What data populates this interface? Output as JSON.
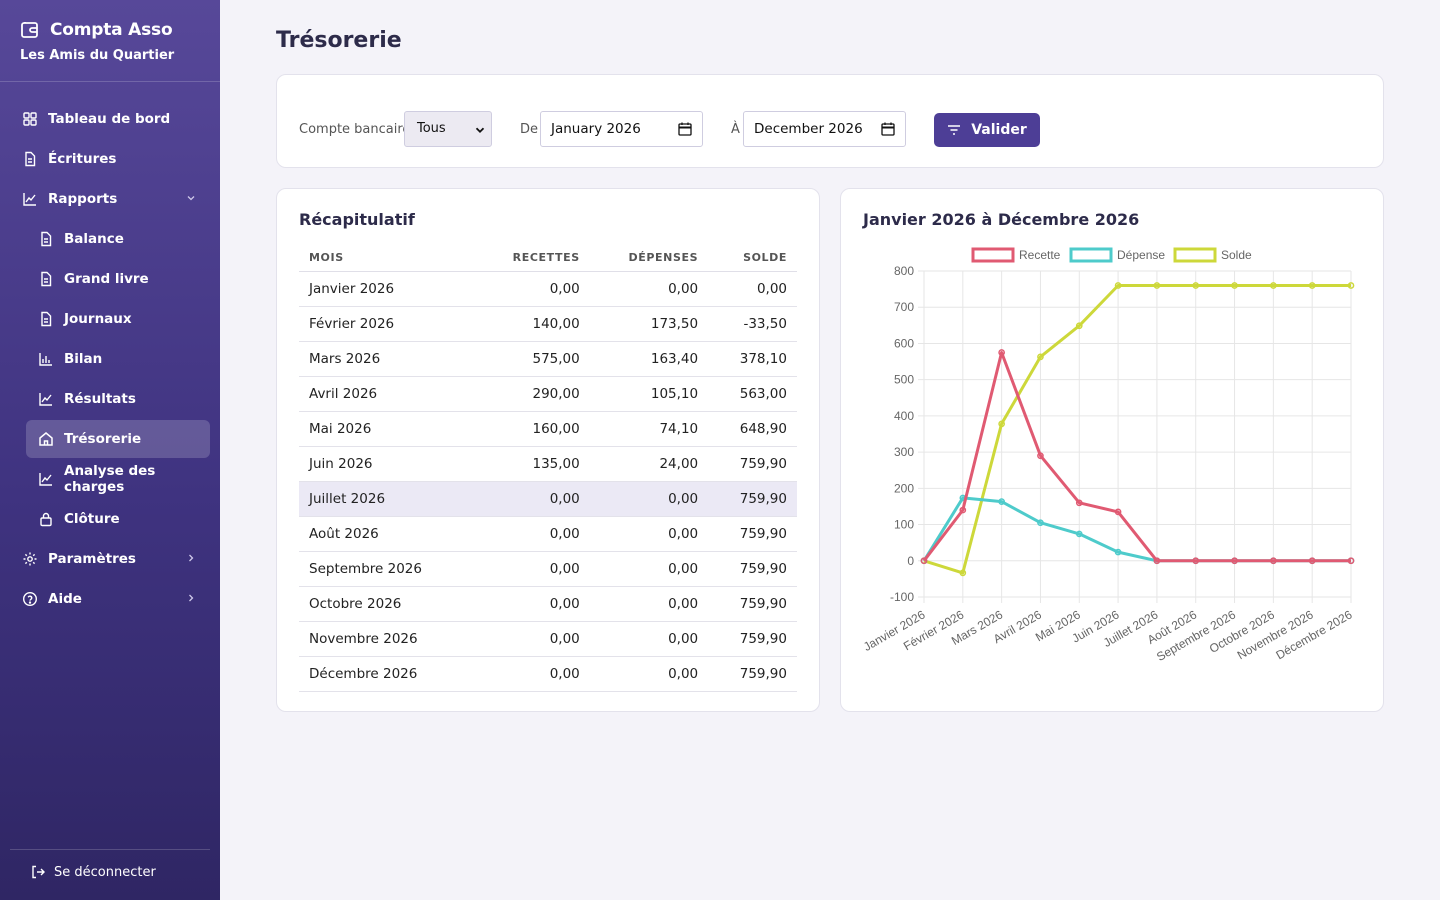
{
  "app": {
    "name": "Compta Asso",
    "organization": "Les Amis du Quartier"
  },
  "sidebar": {
    "items": [
      {
        "label": "Tableau de bord",
        "icon": "dashboard-icon"
      },
      {
        "label": "Écritures",
        "icon": "document-icon"
      },
      {
        "label": "Rapports",
        "icon": "chart-line-icon",
        "expanded": true
      },
      {
        "label": "Balance",
        "icon": "document-icon"
      },
      {
        "label": "Grand livre",
        "icon": "document-icon"
      },
      {
        "label": "Journaux",
        "icon": "document-icon"
      },
      {
        "label": "Bilan",
        "icon": "bar-chart-icon"
      },
      {
        "label": "Résultats",
        "icon": "chart-line-icon"
      },
      {
        "label": "Trésorerie",
        "icon": "home-icon",
        "active": true
      },
      {
        "label": "Analyse des charges",
        "icon": "chart-line-icon"
      },
      {
        "label": "Clôture",
        "icon": "lock-icon"
      },
      {
        "label": "Paramètres",
        "icon": "gear-icon"
      },
      {
        "label": "Aide",
        "icon": "help-icon"
      }
    ],
    "logout_label": "Se déconnecter"
  },
  "page": {
    "title": "Trésorerie"
  },
  "filters": {
    "account_label": "Compte bancaire",
    "account_value": "Tous",
    "from_label": "De",
    "from_value": "January 2026",
    "to_label": "À",
    "to_value": "December 2026",
    "submit_label": "Valider"
  },
  "summary": {
    "title": "Récapitulatif",
    "columns": [
      "MOIS",
      "RECETTES",
      "DÉPENSES",
      "SOLDE"
    ],
    "rows": [
      [
        "Janvier 2026",
        "0,00",
        "0,00",
        "0,00"
      ],
      [
        "Février 2026",
        "140,00",
        "173,50",
        "-33,50"
      ],
      [
        "Mars 2026",
        "575,00",
        "163,40",
        "378,10"
      ],
      [
        "Avril 2026",
        "290,00",
        "105,10",
        "563,00"
      ],
      [
        "Mai 2026",
        "160,00",
        "74,10",
        "648,90"
      ],
      [
        "Juin 2026",
        "135,00",
        "24,00",
        "759,90"
      ],
      [
        "Juillet 2026",
        "0,00",
        "0,00",
        "759,90"
      ],
      [
        "Août 2026",
        "0,00",
        "0,00",
        "759,90"
      ],
      [
        "Septembre 2026",
        "0,00",
        "0,00",
        "759,90"
      ],
      [
        "Octobre 2026",
        "0,00",
        "0,00",
        "759,90"
      ],
      [
        "Novembre 2026",
        "0,00",
        "0,00",
        "759,90"
      ],
      [
        "Décembre 2026",
        "0,00",
        "0,00",
        "759,90"
      ]
    ]
  },
  "chart_data": {
    "type": "line",
    "title": "Janvier 2026 à Décembre 2026",
    "categories": [
      "Janvier 2026",
      "Février 2026",
      "Mars 2026",
      "Avril 2026",
      "Mai 2026",
      "Juin 2026",
      "Juillet 2026",
      "Août 2026",
      "Septembre 2026",
      "Octobre 2026",
      "Novembre 2026",
      "Décembre 2026"
    ],
    "series": [
      {
        "name": "Recette",
        "color": "#e05a72",
        "values": [
          0,
          140,
          575,
          290,
          160,
          135,
          0,
          0,
          0,
          0,
          0,
          0
        ]
      },
      {
        "name": "Dépense",
        "color": "#4ecbcb",
        "values": [
          0,
          173.5,
          163.4,
          105.1,
          74.1,
          24,
          0,
          0,
          0,
          0,
          0,
          0
        ]
      },
      {
        "name": "Solde",
        "color": "#cdd83a",
        "values": [
          0,
          -33.5,
          378.1,
          563,
          648.9,
          759.9,
          759.9,
          759.9,
          759.9,
          759.9,
          759.9,
          759.9
        ]
      }
    ],
    "ylim": [
      -100,
      800
    ],
    "yticks": [
      -100,
      0,
      100,
      200,
      300,
      400,
      500,
      600,
      700,
      800
    ],
    "grid": true,
    "legend": "top"
  }
}
